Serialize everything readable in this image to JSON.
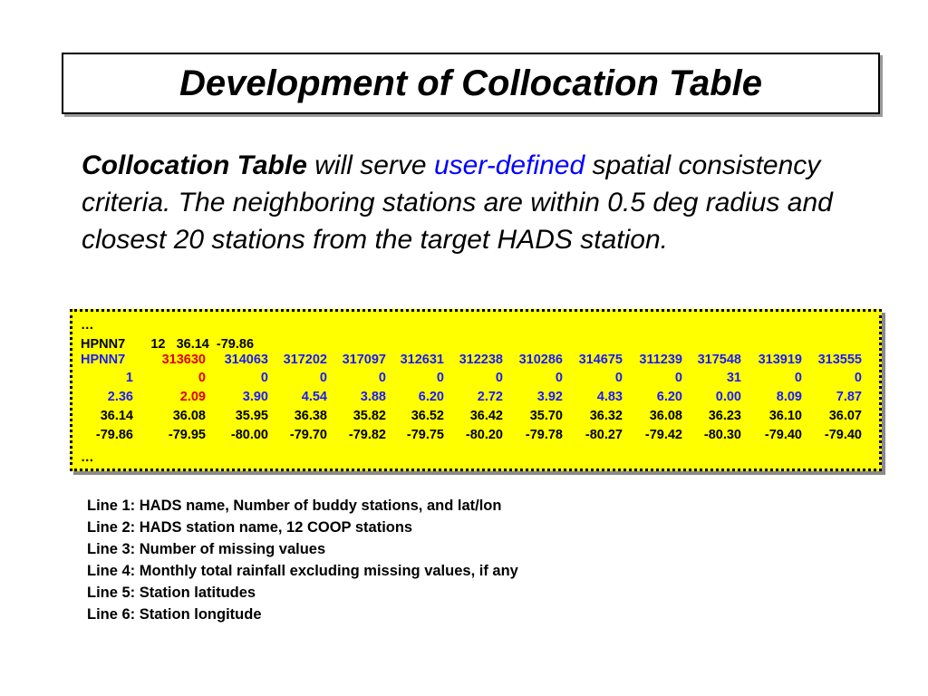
{
  "title": "Development of Collocation Table",
  "intro": {
    "bold_lead": "Collocation Table",
    "text_a": " will serve ",
    "highlight": "user-defined",
    "text_b": " spatial consistency criteria. The neighboring stations are within 0.5 deg radius and closest 20 stations from the target HADS station."
  },
  "table": {
    "ellipsis_top": "…",
    "header_line": "HPNN7       12   36.14  -79.86",
    "station_name": "HPNN7",
    "rows": [
      [
        "313630",
        "314063",
        "317202",
        "317097",
        "312631",
        "312238",
        "310286",
        "314675",
        "311239",
        "317548",
        "313919",
        "313555"
      ],
      [
        "0",
        "0",
        "0",
        "0",
        "0",
        "0",
        "0",
        "0",
        "0",
        "31",
        "0",
        "0"
      ],
      [
        "2.09",
        "3.90",
        "4.54",
        "3.88",
        "6.20",
        "2.72",
        "3.92",
        "4.83",
        "6.20",
        "0.00",
        "8.09",
        "7.87"
      ],
      [
        "36.08",
        "35.95",
        "36.38",
        "35.82",
        "36.52",
        "36.42",
        "35.70",
        "36.32",
        "36.08",
        "36.23",
        "36.10",
        "36.07"
      ],
      [
        "-79.95",
        "-80.00",
        "-79.70",
        "-79.82",
        "-79.75",
        "-80.20",
        "-79.78",
        "-80.27",
        "-79.42",
        "-80.30",
        "-79.40",
        "-79.40"
      ]
    ],
    "lead_values": [
      "1",
      "2.36",
      "36.14",
      "-79.86"
    ],
    "ellipsis_bottom": "…"
  },
  "notes": [
    "Line 1: HADS name, Number of buddy stations, and lat/lon",
    "Line 2: HADS station name, 12 COOP stations",
    "Line 3: Number of missing values",
    "Line 4: Monthly total rainfall excluding missing values, if any",
    "Line 5: Station latitudes",
    "Line 6: Station longitude"
  ],
  "colors": {
    "box_bg": "#ffff00",
    "link_blue": "#0000ff",
    "highlight_red": "#e00000"
  }
}
